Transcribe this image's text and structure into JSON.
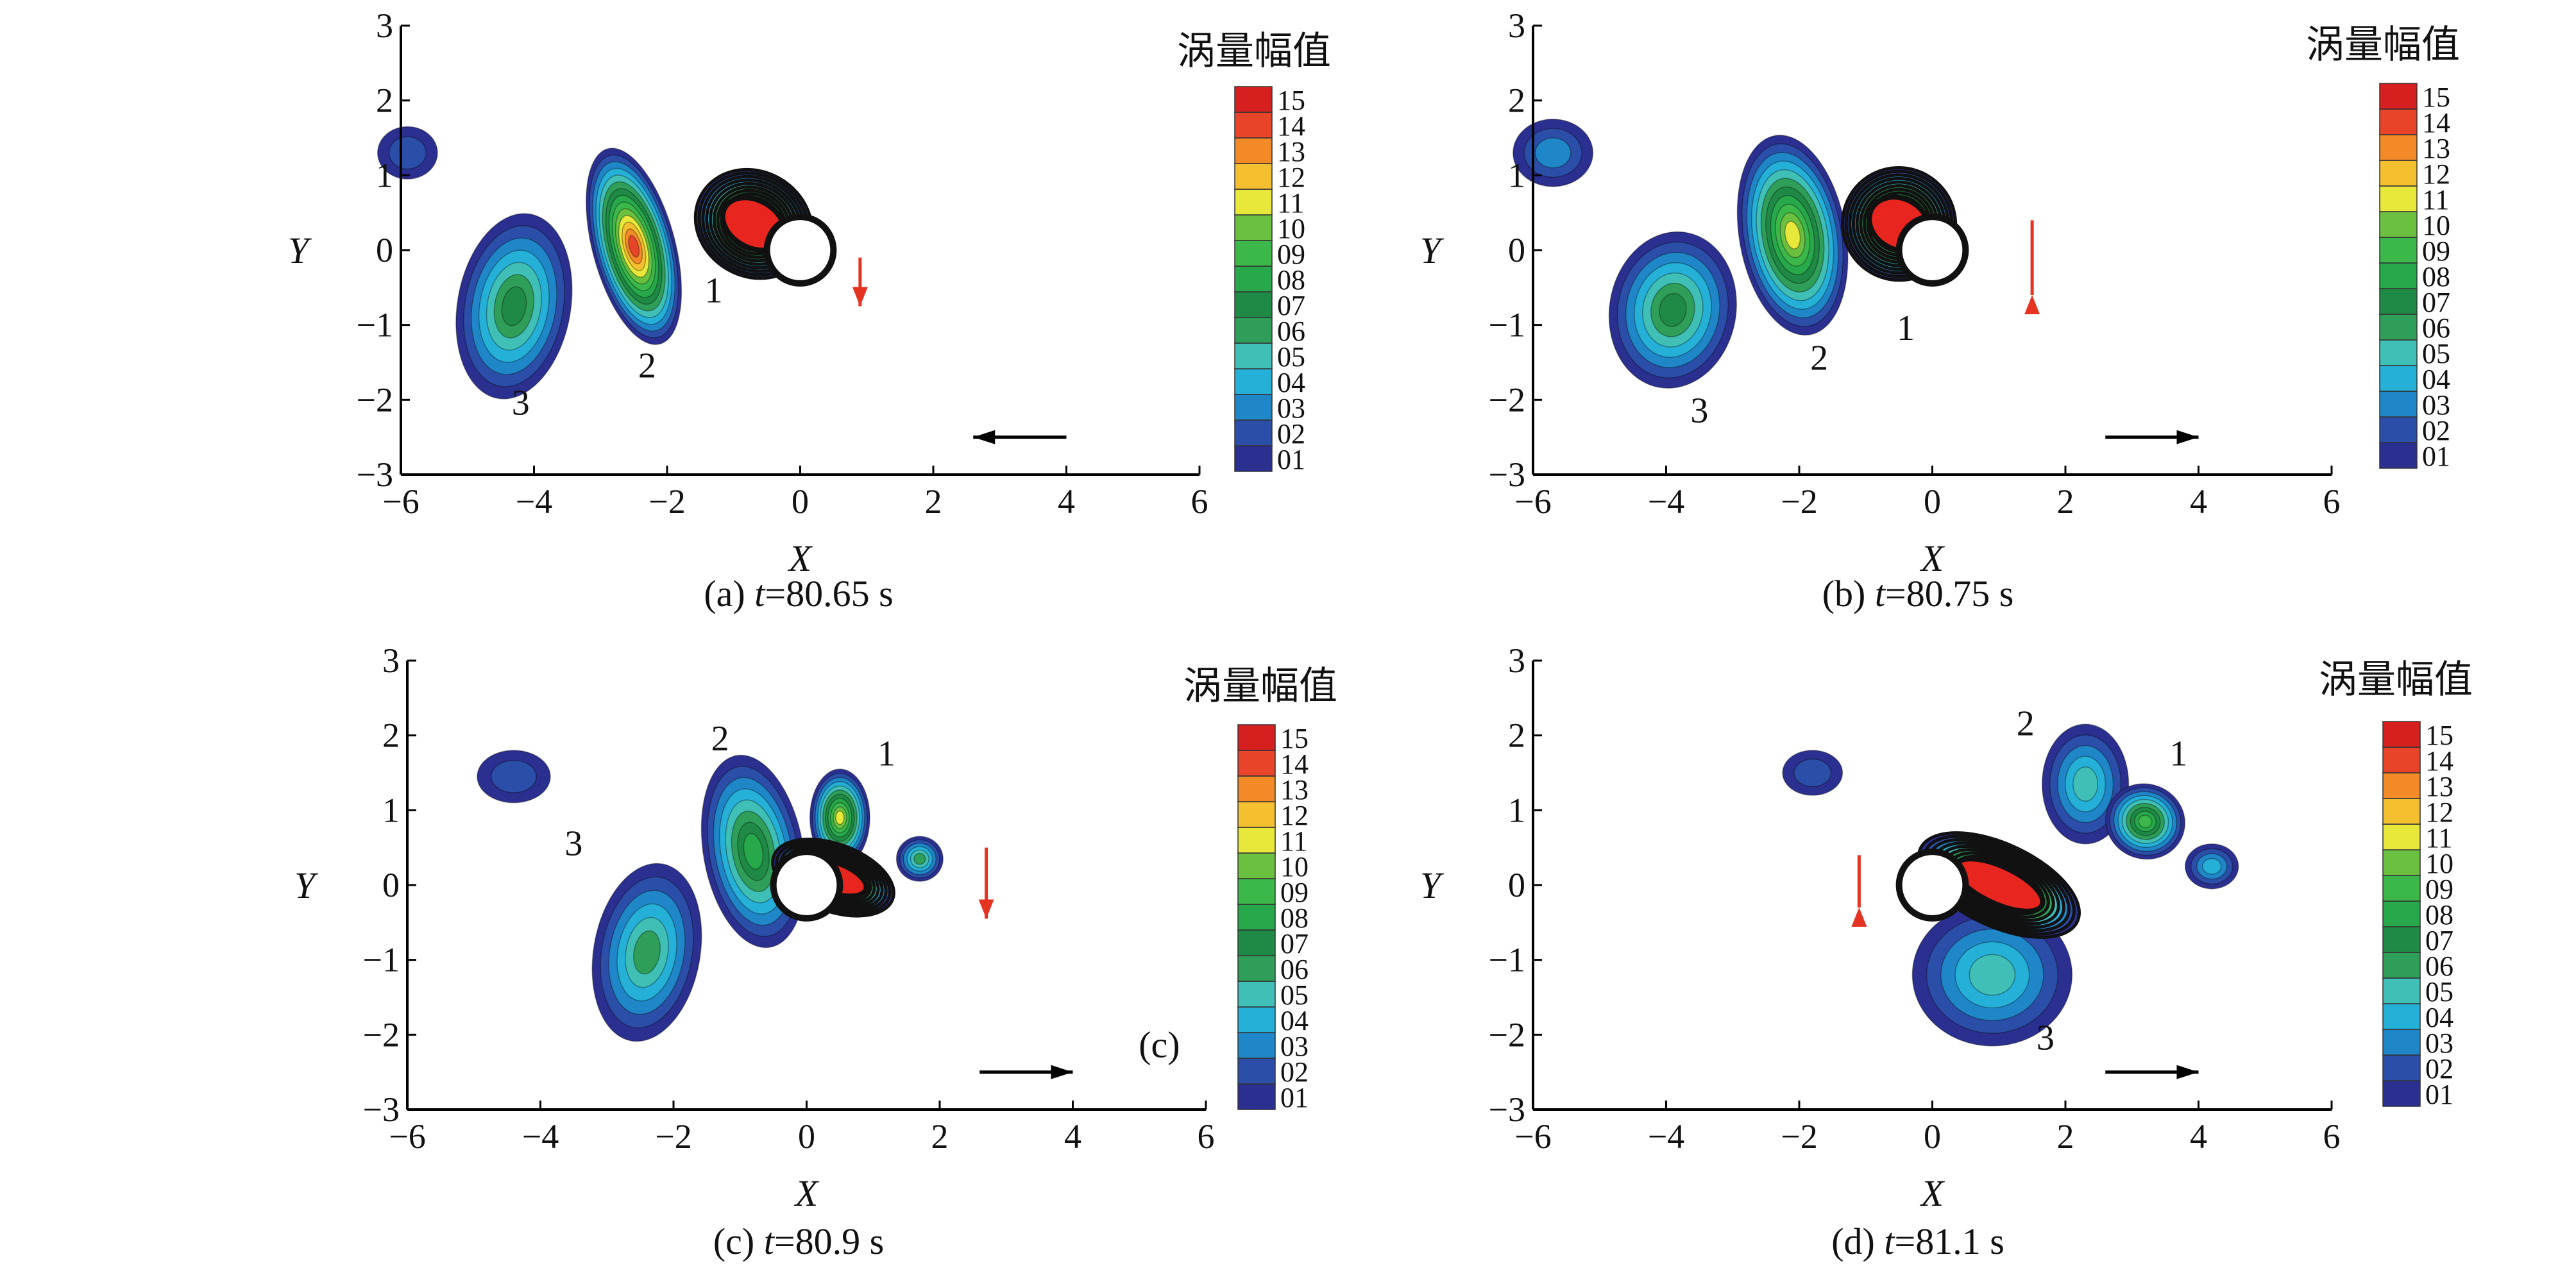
{
  "colorbar_title": "涡量幅值",
  "colorbar_levels": [
    "01",
    "02",
    "03",
    "04",
    "05",
    "06",
    "07",
    "08",
    "09",
    "10",
    "11",
    "12",
    "13",
    "14",
    "15"
  ],
  "colorbar_colors": [
    "#2b2f8f",
    "#2b4ea8",
    "#1f86c8",
    "#25b0d8",
    "#3fbfb5",
    "#2f9e58",
    "#1f8a45",
    "#27a84a",
    "#3cb84a",
    "#6cc040",
    "#e8e83a",
    "#f5c030",
    "#f28a28",
    "#e8442a",
    "#d62020"
  ],
  "axis": {
    "xlabel": "X",
    "ylabel": "Y",
    "xticks": [
      "−6",
      "−4",
      "−2",
      "0",
      "2",
      "4",
      "6"
    ],
    "yticks": [
      "3",
      "2",
      "1",
      "0",
      "−1",
      "−2",
      "−3"
    ]
  },
  "chart_data": [
    {
      "type": "heatmap",
      "caption_prefix": "(a) ",
      "caption_t": "t",
      "caption_value": "=80.65 s",
      "xlim": [
        -6,
        6
      ],
      "ylim": [
        -3,
        3
      ],
      "vortex_labels": [
        {
          "text": "1",
          "x": -1.3,
          "y": -0.7
        },
        {
          "text": "2",
          "x": -2.3,
          "y": -1.7
        },
        {
          "text": "3",
          "x": -4.2,
          "y": -2.2
        }
      ],
      "arrows": [
        {
          "color": "red",
          "dir": "down"
        },
        {
          "color": "black",
          "dir": "left"
        }
      ],
      "inset_label": ""
    },
    {
      "type": "heatmap",
      "caption_prefix": "(b) ",
      "caption_t": "t",
      "caption_value": "=80.75 s",
      "xlim": [
        -6,
        6
      ],
      "ylim": [
        -3,
        3
      ],
      "vortex_labels": [
        {
          "text": "1",
          "x": -0.4,
          "y": -1.2
        },
        {
          "text": "2",
          "x": -1.7,
          "y": -1.6
        },
        {
          "text": "3",
          "x": -3.5,
          "y": -2.3
        }
      ],
      "arrows": [
        {
          "color": "red",
          "dir": "up"
        },
        {
          "color": "black",
          "dir": "right"
        }
      ],
      "inset_label": ""
    },
    {
      "type": "heatmap",
      "caption_prefix": "(c) ",
      "caption_t": "t",
      "caption_value": "=80.9 s",
      "xlim": [
        -6,
        6
      ],
      "ylim": [
        -3,
        3
      ],
      "vortex_labels": [
        {
          "text": "1",
          "x": 1.2,
          "y": 1.6
        },
        {
          "text": "2",
          "x": -1.3,
          "y": 1.8
        },
        {
          "text": "3",
          "x": -3.5,
          "y": 0.4
        }
      ],
      "arrows": [
        {
          "color": "red",
          "dir": "down"
        },
        {
          "color": "black",
          "dir": "right"
        }
      ],
      "inset_label": "(c)"
    },
    {
      "type": "heatmap",
      "caption_prefix": "(d) ",
      "caption_t": "t",
      "caption_value": "=81.1 s",
      "xlim": [
        -6,
        6
      ],
      "ylim": [
        -3,
        3
      ],
      "vortex_labels": [
        {
          "text": "1",
          "x": 3.7,
          "y": 1.6
        },
        {
          "text": "2",
          "x": 1.4,
          "y": 2.0
        },
        {
          "text": "3",
          "x": 1.7,
          "y": -2.2
        }
      ],
      "arrows": [
        {
          "color": "red",
          "dir": "up"
        },
        {
          "color": "black",
          "dir": "right"
        }
      ],
      "inset_label": ""
    }
  ]
}
